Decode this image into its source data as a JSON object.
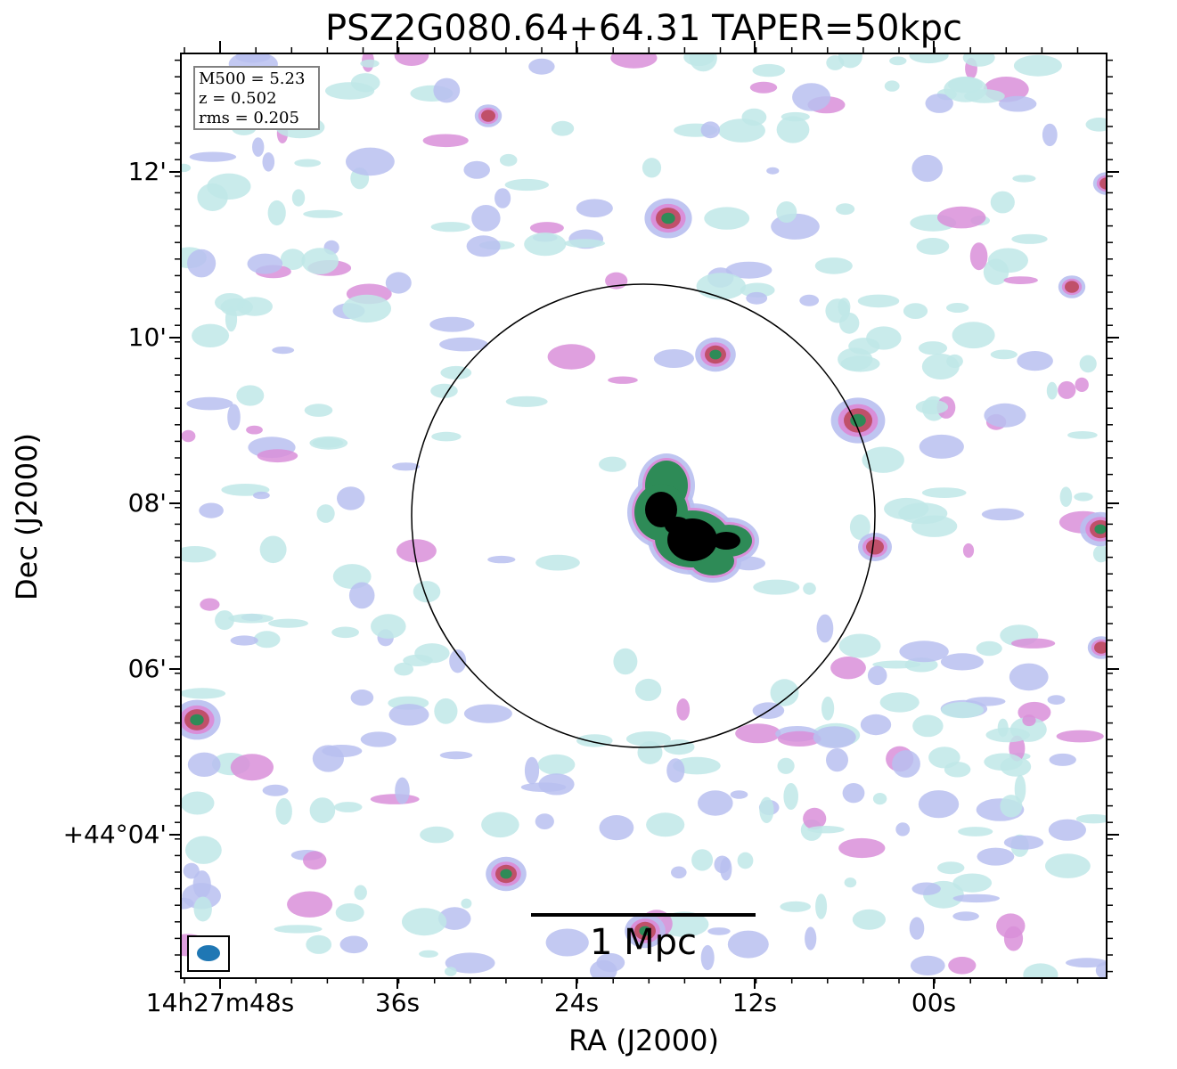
{
  "title": "PSZ2G080.64+64.31 TAPER=50kpc",
  "x_axis": {
    "label": "RA (J2000)",
    "ticks": [
      "14h27m48s",
      "36s",
      "24s",
      "12s",
      "00s"
    ]
  },
  "y_axis": {
    "label": "Dec (J2000)",
    "ticks": [
      "12'",
      "10'",
      "08'",
      "06'",
      "+44°04'"
    ]
  },
  "info_box": {
    "m500": "M500 = 5.23",
    "z": "z = 0.502",
    "rms": "rms = 0.205"
  },
  "scale_bar": {
    "label": "1 Mpc"
  },
  "beam": {
    "color": "#1f77b4"
  },
  "colors": {
    "cyan": "#bfe8e8",
    "lavender": "#b8bff0",
    "pink": "#d98fd9",
    "red": "#c0506a",
    "green": "#2e8b57",
    "core": "#000000"
  }
}
